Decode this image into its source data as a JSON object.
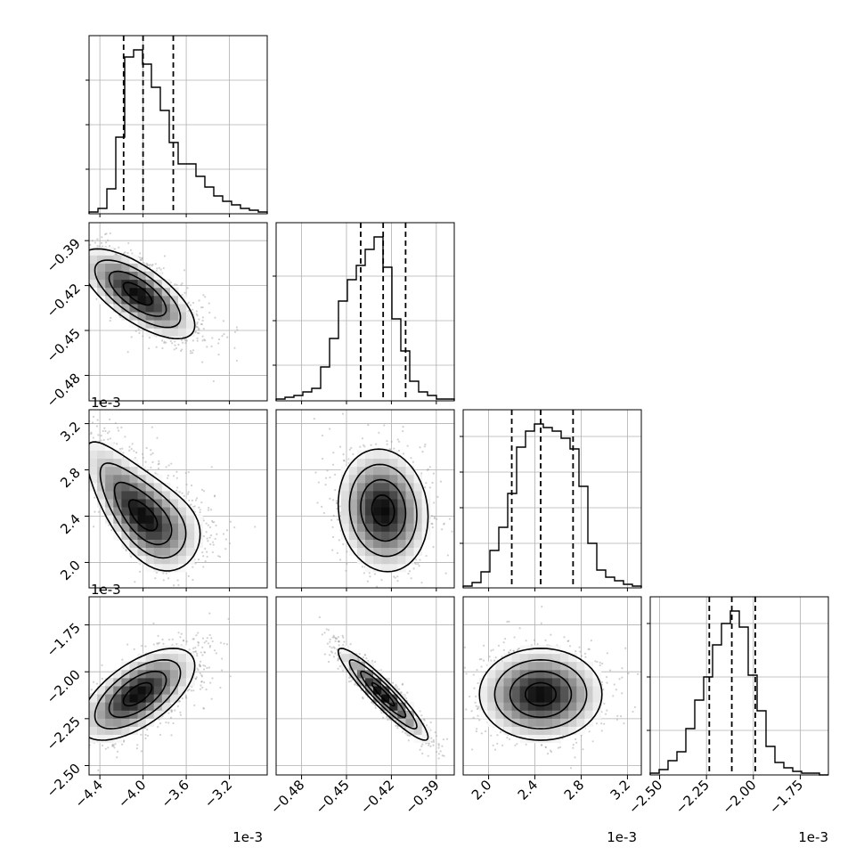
{
  "chart_data": {
    "type": "corner",
    "colors": {
      "line": "#000000",
      "grid": "#b0b0b0",
      "scatter": "#9a9a9a",
      "fill": "#555555"
    },
    "grid": true,
    "params": [
      {
        "range": [
          -4.5,
          -2.85
        ],
        "ticks": [
          -4.4,
          -4.0,
          -3.6,
          -3.2
        ],
        "tick_labels": [
          "−4.4",
          "−4.0",
          "−3.6",
          "−3.2"
        ],
        "offset_label": "1e-3",
        "quantiles": [
          -4.18,
          -4.0,
          -3.72
        ],
        "hist": {
          "edges_start": -4.5,
          "bin_width": 0.0825,
          "counts": [
            1,
            3,
            14,
            43,
            88,
            92,
            84,
            71,
            58,
            40,
            28,
            28,
            21,
            15,
            10,
            7,
            5,
            3,
            2,
            1
          ],
          "ymax": 100,
          "yticks": [
            25,
            50,
            75
          ]
        }
      },
      {
        "range": [
          -0.497,
          -0.378
        ],
        "ticks": [
          -0.48,
          -0.45,
          -0.42,
          -0.39
        ],
        "tick_labels": [
          "−0.48",
          "−0.45",
          "−0.42",
          "−0.39"
        ],
        "offset_label": "",
        "quantiles": [
          -0.4405,
          -0.4255,
          -0.4105
        ],
        "hist": {
          "edges_start": -0.497,
          "bin_width": 0.00595,
          "counts": [
            1,
            2,
            3,
            5,
            7,
            19,
            35,
            56,
            68,
            76,
            85,
            92,
            75,
            46,
            28,
            11,
            5,
            3,
            1,
            1
          ],
          "ymax": 100,
          "yticks": [
            20,
            45,
            70
          ]
        }
      },
      {
        "range": [
          1.78,
          3.32
        ],
        "ticks": [
          2.0,
          2.4,
          2.8,
          3.2
        ],
        "tick_labels": [
          "2.0",
          "2.4",
          "2.8",
          "3.2"
        ],
        "offset_label": "1e-3",
        "quantiles": [
          2.2,
          2.45,
          2.73
        ],
        "hist": {
          "edges_start": 1.78,
          "bin_width": 0.077,
          "counts": [
            1,
            3,
            9,
            21,
            34,
            53,
            79,
            88,
            92,
            90,
            88,
            84,
            78,
            57,
            25,
            10,
            6,
            4,
            2,
            1
          ],
          "ymax": 100,
          "yticks": [
            25,
            45,
            65,
            85
          ]
        }
      },
      {
        "range": [
          -2.55,
          -1.6
        ],
        "ticks": [
          -2.5,
          -2.25,
          -2.0,
          -1.75
        ],
        "tick_labels": [
          "−2.50",
          "−2.25",
          "−2.00",
          "−1.75"
        ],
        "offset_label": "1e-3",
        "quantiles": [
          -2.235,
          -2.115,
          -1.99
        ],
        "hist": {
          "edges_start": -2.55,
          "bin_width": 0.0475,
          "counts": [
            1,
            3,
            8,
            13,
            26,
            42,
            55,
            73,
            85,
            92,
            83,
            56,
            36,
            16,
            7,
            4,
            2,
            1,
            1,
            0
          ],
          "ymax": 100,
          "yticks": [
            25,
            55,
            85
          ]
        }
      }
    ],
    "pairs": [
      {
        "x": 0,
        "y": 1,
        "center": [
          -4.05,
          -0.4255
        ],
        "corr": -0.7,
        "shape": "gaussian"
      },
      {
        "x": 0,
        "y": 2,
        "center": [
          -4.0,
          2.45
        ],
        "corr": -0.65,
        "shape": "curved"
      },
      {
        "x": 1,
        "y": 2,
        "center": [
          -0.4255,
          2.45
        ],
        "corr": -0.1,
        "shape": "gaussian"
      },
      {
        "x": 0,
        "y": 3,
        "center": [
          -4.05,
          -2.12
        ],
        "corr": 0.62,
        "shape": "gaussian"
      },
      {
        "x": 1,
        "y": 3,
        "center": [
          -0.4255,
          -2.12
        ],
        "corr": -0.93,
        "shape": "gaussian"
      },
      {
        "x": 2,
        "y": 3,
        "center": [
          2.45,
          -2.12
        ],
        "corr": 0.0,
        "shape": "gaussian"
      }
    ]
  }
}
